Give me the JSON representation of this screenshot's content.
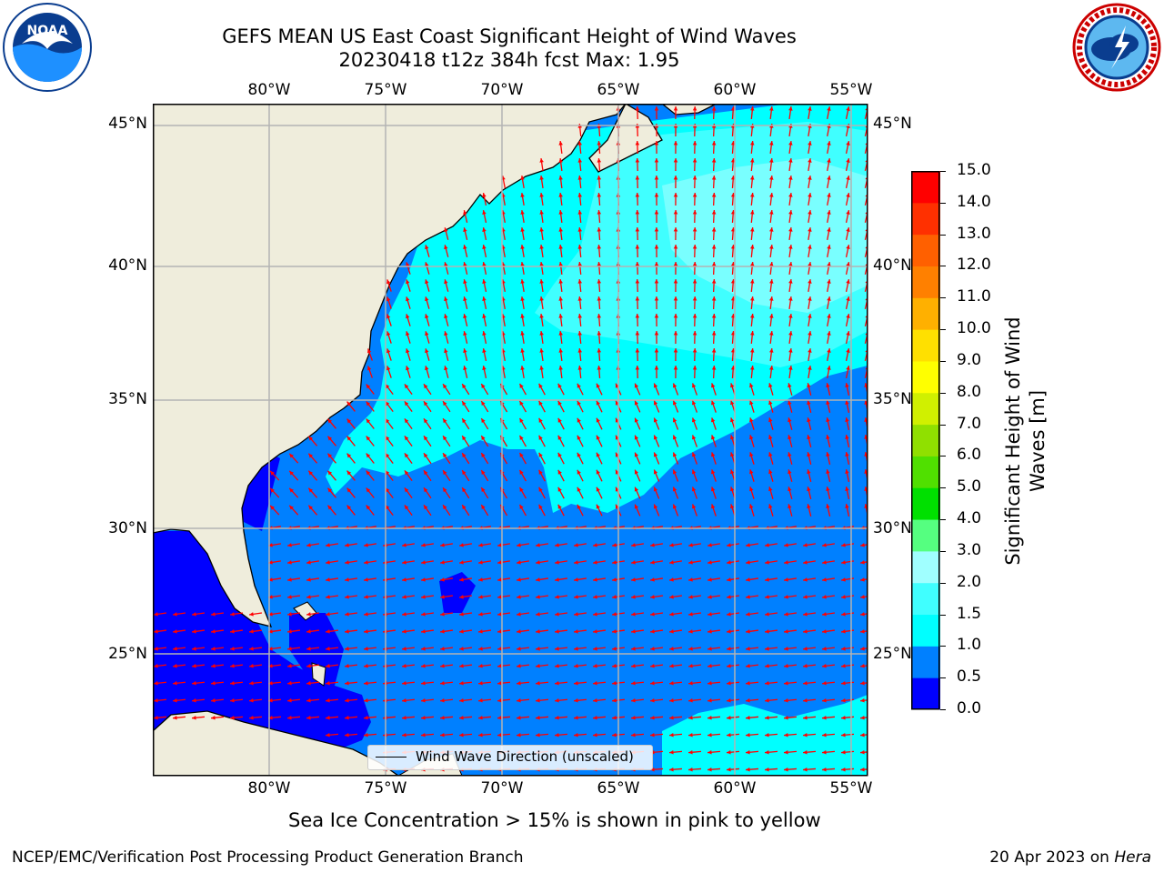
{
  "header": {
    "title_line1": "GEFS MEAN US East Coast Significant Height of Wind Waves",
    "title_line2": "20230418 t12z 384h fcst   Max: 1.95"
  },
  "logos": {
    "left": {
      "name": "NOAA",
      "text": "NOAA"
    },
    "right": {
      "name": "National Weather Service"
    }
  },
  "map": {
    "lon_ticks": [
      "80°W",
      "75°W",
      "70°W",
      "65°W",
      "60°W",
      "55°W"
    ],
    "lat_ticks": [
      "45°N",
      "40°N",
      "35°N",
      "30°N",
      "25°N"
    ],
    "legend_label": "Wind Wave Direction (unscaled)",
    "colors": {
      "land": "#efeddc",
      "arrow": "#ff0000",
      "grid": "#b3b3b3",
      "coast": "#000000"
    }
  },
  "colorbar": {
    "label_line1": "Significant Height of Wind",
    "label_line2": "Waves [m]",
    "ticks": [
      "15.0",
      "14.0",
      "13.0",
      "12.0",
      "11.0",
      "10.0",
      "9.0",
      "8.0",
      "7.0",
      "6.0",
      "5.0",
      "4.0",
      "3.0",
      "2.0",
      "1.5",
      "1.0",
      "0.5",
      "0.0"
    ],
    "colors": [
      "#0000ff",
      "#0080ff",
      "#00ffff",
      "#40ffff",
      "#a0ffff",
      "#55ff80",
      "#00e000",
      "#50e000",
      "#90e000",
      "#d0f000",
      "#ffff00",
      "#ffe000",
      "#ffb000",
      "#ff8000",
      "#ff6000",
      "#ff3000",
      "#ff0000"
    ]
  },
  "notes": {
    "sea_ice": "Sea Ice Concentration > 15% is shown in pink to yellow"
  },
  "footer": {
    "left": "NCEP/EMC/Verification Post Processing Product Generation Branch",
    "right_prefix": "20 Apr 2023 on ",
    "right_host": "Hera"
  }
}
